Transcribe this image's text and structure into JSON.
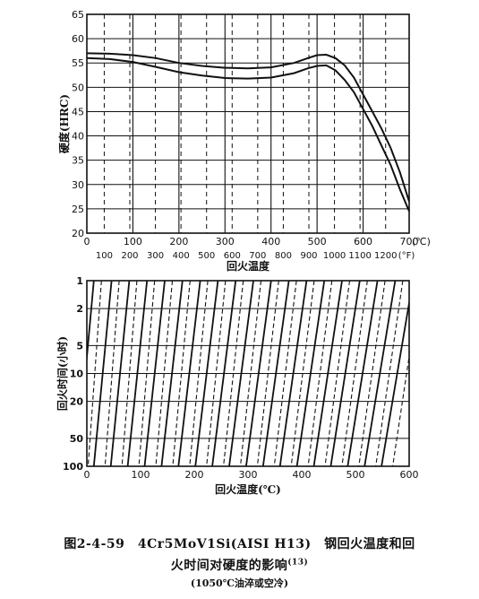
{
  "chart_data": [
    {
      "type": "line",
      "ylabel": "硬度(HRC)",
      "xlabel": "回火温度",
      "xunit_top": "(℃)",
      "xunit_bottom": "(°F)",
      "xlim_c": [
        0,
        700
      ],
      "ylim": [
        20,
        65
      ],
      "x_ticks_c": [
        "0",
        "100",
        "200",
        "300",
        "400",
        "500",
        "600",
        "700"
      ],
      "x_ticks_f": [
        "100",
        "200",
        "300",
        "400",
        "500",
        "600",
        "700",
        "800",
        "900",
        "1000",
        "1100",
        "1200"
      ],
      "y_ticks": [
        "20",
        "25",
        "30",
        "35",
        "40",
        "45",
        "50",
        "55",
        "60",
        "65"
      ],
      "grid": true,
      "series": [
        {
          "x": [
            0,
            50,
            100,
            150,
            200,
            250,
            300,
            350,
            400,
            450,
            480,
            500,
            520,
            540,
            560,
            580,
            600,
            620,
            640,
            660,
            680,
            700
          ],
          "values": [
            57,
            56.9,
            56.6,
            56,
            55,
            54.4,
            54,
            53.9,
            54.1,
            55,
            56,
            56.6,
            56.7,
            56,
            54.5,
            52,
            48.5,
            45,
            41.5,
            37.5,
            32.5,
            26.5
          ]
        },
        {
          "x": [
            0,
            50,
            100,
            150,
            200,
            250,
            300,
            350,
            400,
            450,
            480,
            500,
            520,
            540,
            560,
            580,
            600,
            620,
            640,
            660,
            680,
            700
          ],
          "values": [
            56,
            55.8,
            55.2,
            54.2,
            53.1,
            52.4,
            51.9,
            51.8,
            52,
            52.9,
            53.9,
            54.4,
            54.5,
            53.5,
            51.5,
            49,
            45.5,
            42,
            38,
            34,
            29,
            24.5
          ]
        }
      ]
    },
    {
      "type": "line",
      "ylabel": "回火时间(小时)",
      "xlabel": "回火温度(℃)",
      "xlim": [
        0,
        600
      ],
      "x_ticks": [
        "0",
        "100",
        "200",
        "300",
        "400",
        "500",
        "600"
      ],
      "y_ticks": [
        "1",
        "2",
        "5",
        "10",
        "20",
        "50",
        "100"
      ],
      "log_y": true,
      "grid": true
    }
  ],
  "caption": {
    "line1": "图2-4-59　4Cr5MoV1Si(AISI H13)　钢回火温度和回",
    "line2": "火时间对硬度的影响",
    "line2_ref": "(13)",
    "line3": "(1050℃油淬或空冷)"
  },
  "colors": {
    "ink": "#111111",
    "background": "#ffffff"
  }
}
